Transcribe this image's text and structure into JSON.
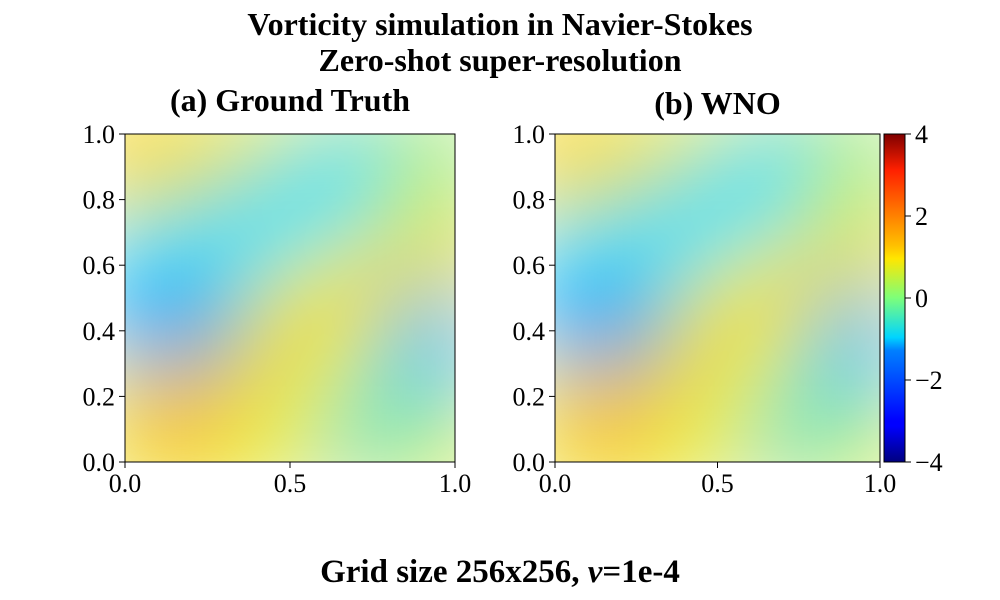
{
  "figure": {
    "title_line1": "Vorticity simulation in Navier-Stokes",
    "title_line2": "Zero-shot super-resolution",
    "bottom_label_prefix": "Grid size 256x256, ",
    "bottom_label_symbol": "ν",
    "bottom_label_suffix": "=1e-4"
  },
  "chart_data": [
    {
      "type": "heatmap",
      "title": "(a) Ground Truth",
      "xlabel": "",
      "ylabel": "",
      "xlim": [
        0.0,
        1.0
      ],
      "ylim": [
        0.0,
        1.0
      ],
      "xticks": [
        "0.0",
        "0.5",
        "1.0"
      ],
      "yticks": [
        "0.0",
        "0.2",
        "0.4",
        "0.6",
        "0.8",
        "1.0"
      ],
      "colormap": "jet",
      "value_range": [
        -4,
        4
      ],
      "field_description_note_removed": true
    },
    {
      "type": "heatmap",
      "title": "(b) WNO",
      "xlabel": "",
      "ylabel": "",
      "xlim": [
        0.0,
        1.0
      ],
      "ylim": [
        0.0,
        1.0
      ],
      "xticks": [
        "0.0",
        "0.5",
        "1.0"
      ],
      "yticks": [
        "0.0",
        "0.2",
        "0.4",
        "0.6",
        "0.8",
        "1.0"
      ],
      "colormap": "jet",
      "value_range": [
        -4,
        4
      ],
      "colorbar_ticks": [
        "4",
        "2",
        "0",
        "−2",
        "−4"
      ]
    }
  ]
}
